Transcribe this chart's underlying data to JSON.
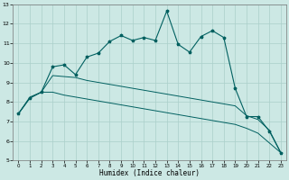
{
  "xlabel": "Humidex (Indice chaleur)",
  "bg_color": "#cce8e4",
  "grid_color": "#aacfca",
  "line_color": "#006060",
  "xlim": [
    -0.5,
    23.5
  ],
  "ylim": [
    5,
    13
  ],
  "yticks": [
    5,
    6,
    7,
    8,
    9,
    10,
    11,
    12,
    13
  ],
  "xticks": [
    0,
    1,
    2,
    3,
    4,
    5,
    6,
    7,
    8,
    9,
    10,
    11,
    12,
    13,
    14,
    15,
    16,
    17,
    18,
    19,
    20,
    21,
    22,
    23
  ],
  "x": [
    0,
    1,
    2,
    3,
    4,
    5,
    6,
    7,
    8,
    9,
    10,
    11,
    12,
    13,
    14,
    15,
    16,
    17,
    18,
    19,
    20,
    21,
    22,
    23
  ],
  "y_main": [
    7.4,
    8.2,
    8.5,
    9.8,
    9.9,
    9.4,
    10.3,
    10.5,
    11.1,
    11.4,
    11.15,
    11.3,
    11.15,
    12.65,
    10.95,
    10.55,
    11.35,
    11.65,
    11.3,
    8.7,
    7.25,
    7.25,
    6.5,
    5.4
  ],
  "y_upper": [
    7.4,
    8.25,
    8.5,
    9.35,
    9.3,
    9.25,
    9.1,
    9.0,
    8.9,
    8.8,
    8.7,
    8.6,
    8.5,
    8.4,
    8.3,
    8.2,
    8.1,
    8.0,
    7.9,
    7.8,
    7.3,
    7.1,
    6.55,
    5.4
  ],
  "y_lower": [
    7.4,
    8.2,
    8.5,
    8.5,
    8.35,
    8.25,
    8.15,
    8.05,
    7.95,
    7.85,
    7.75,
    7.65,
    7.55,
    7.45,
    7.35,
    7.25,
    7.15,
    7.05,
    6.95,
    6.85,
    6.65,
    6.4,
    5.9,
    5.4
  ]
}
